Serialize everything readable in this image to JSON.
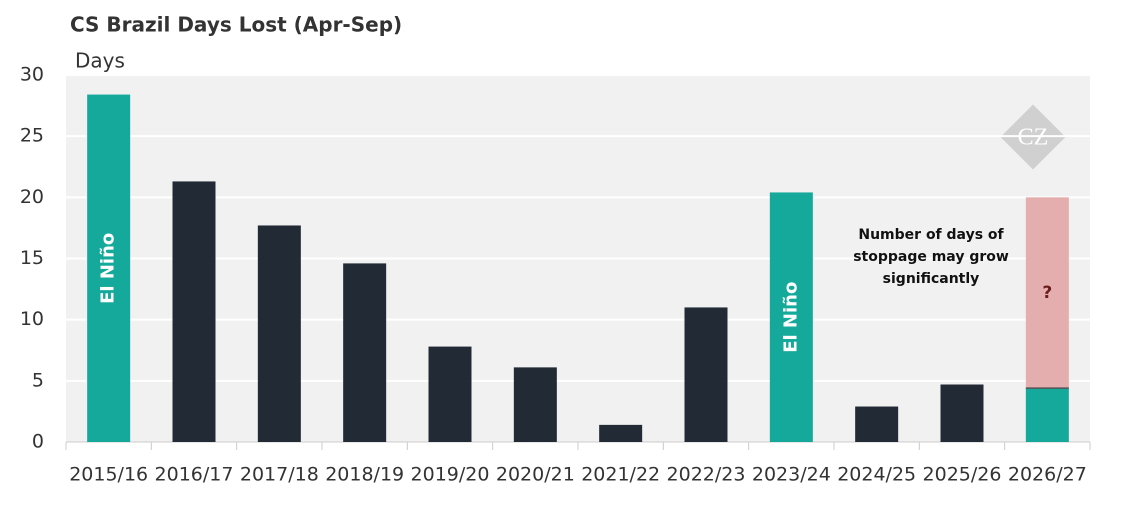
{
  "chart_data": {
    "type": "bar",
    "title": "CS Brazil Days Lost (Apr-Sep)",
    "y_label": "Days",
    "categories": [
      "2015/16",
      "2016/17",
      "2017/18",
      "2018/19",
      "2019/20",
      "2020/21",
      "2021/22",
      "2022/23",
      "2023/24",
      "2024/25",
      "2025/26",
      "2026/27"
    ],
    "values": [
      28.4,
      21.3,
      17.7,
      14.6,
      7.8,
      6.1,
      1.4,
      11.0,
      20.4,
      2.9,
      4.7,
      4.4
    ],
    "colors": [
      "#14a99b",
      "#222a35",
      "#222a35",
      "#222a35",
      "#222a35",
      "#222a35",
      "#222a35",
      "#222a35",
      "#14a99b",
      "#222a35",
      "#222a35",
      "#14a99b"
    ],
    "bar_labels": [
      "El Niño",
      null,
      null,
      null,
      null,
      null,
      null,
      null,
      "El Niño",
      null,
      null,
      null
    ],
    "extension": {
      "values": [
        null,
        null,
        null,
        null,
        null,
        null,
        null,
        null,
        null,
        null,
        null,
        15.6
      ],
      "color": "#e4aeae",
      "label": "?"
    },
    "annotation": [
      "Number of days of",
      "stoppage may grow",
      "significantly"
    ],
    "logo": "CZ",
    "ylim": [
      0,
      30
    ],
    "yticks": [
      0,
      5,
      10,
      15,
      20,
      25,
      30
    ],
    "grid": true
  }
}
